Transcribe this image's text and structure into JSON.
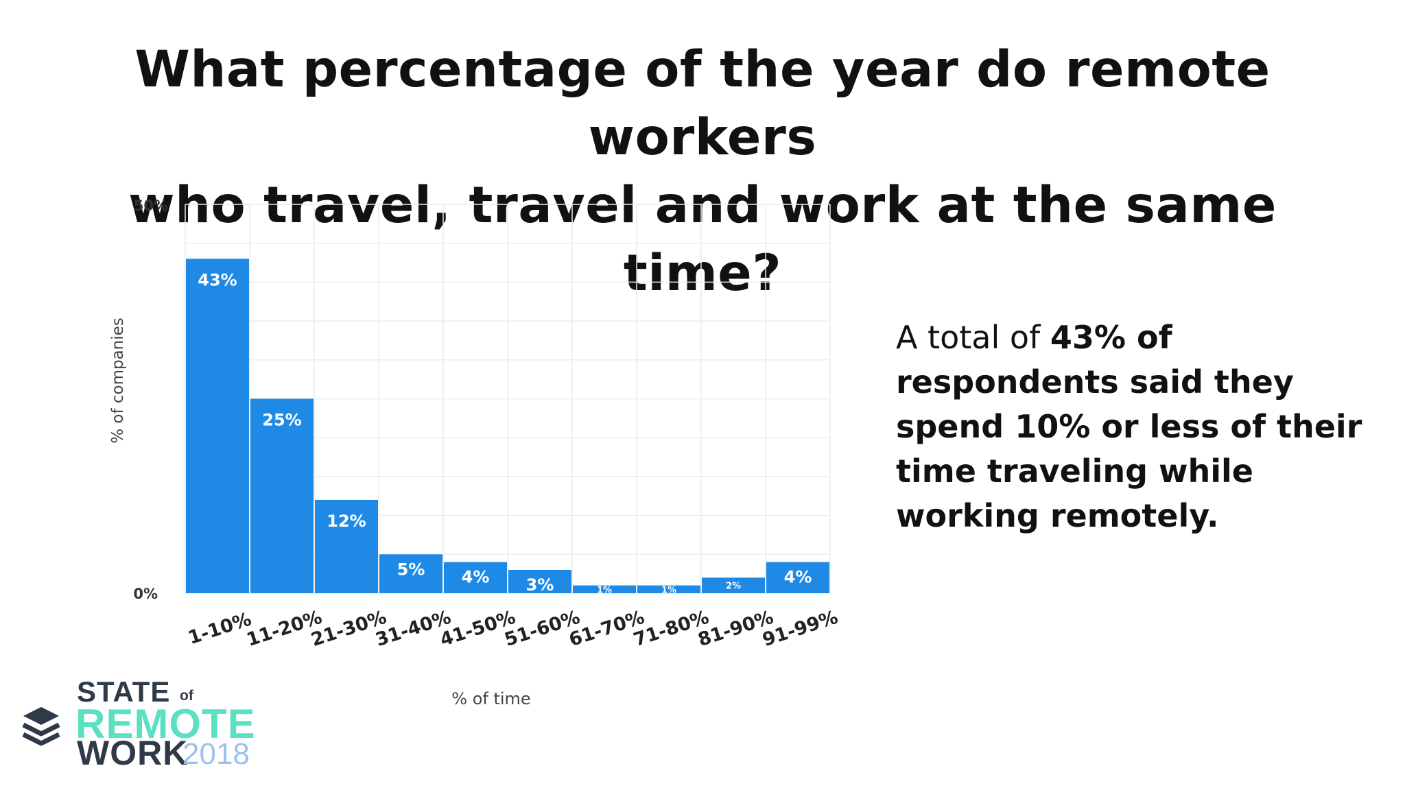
{
  "title": {
    "line1": "What percentage of the year do remote workers",
    "line2": "who travel, travel and work at the same time?"
  },
  "chart_data": {
    "type": "bar",
    "categories": [
      "1-10%",
      "11-20%",
      "21-30%",
      "31-40%",
      "41-50%",
      "51-60%",
      "61-70%",
      "71-80%",
      "81-90%",
      "91-99%"
    ],
    "values": [
      43,
      25,
      12,
      5,
      4,
      3,
      1,
      1,
      2,
      4
    ],
    "data_labels": [
      "43%",
      "25%",
      "12%",
      "5%",
      "4%",
      "3%",
      "1%",
      "1%",
      "2%",
      "4%"
    ],
    "xlabel": "% of time",
    "ylabel": "% of companies",
    "ylim": [
      0,
      50
    ],
    "y_ticks": [
      "0%",
      "50%"
    ],
    "bar_color": "#1e8ae6",
    "grid": true
  },
  "note": {
    "prefix": "A total of ",
    "bold": "43% of respondents said they spend 10% or less of their time traveling while working remotely."
  },
  "logo": {
    "state": "STATE",
    "of": "of",
    "remote": "REMOTE",
    "work": "WORK",
    "year": "2018",
    "icon": "stacked-layers-icon",
    "remote_color": "#5ce0c2",
    "year_color": "#9fc0ee"
  }
}
